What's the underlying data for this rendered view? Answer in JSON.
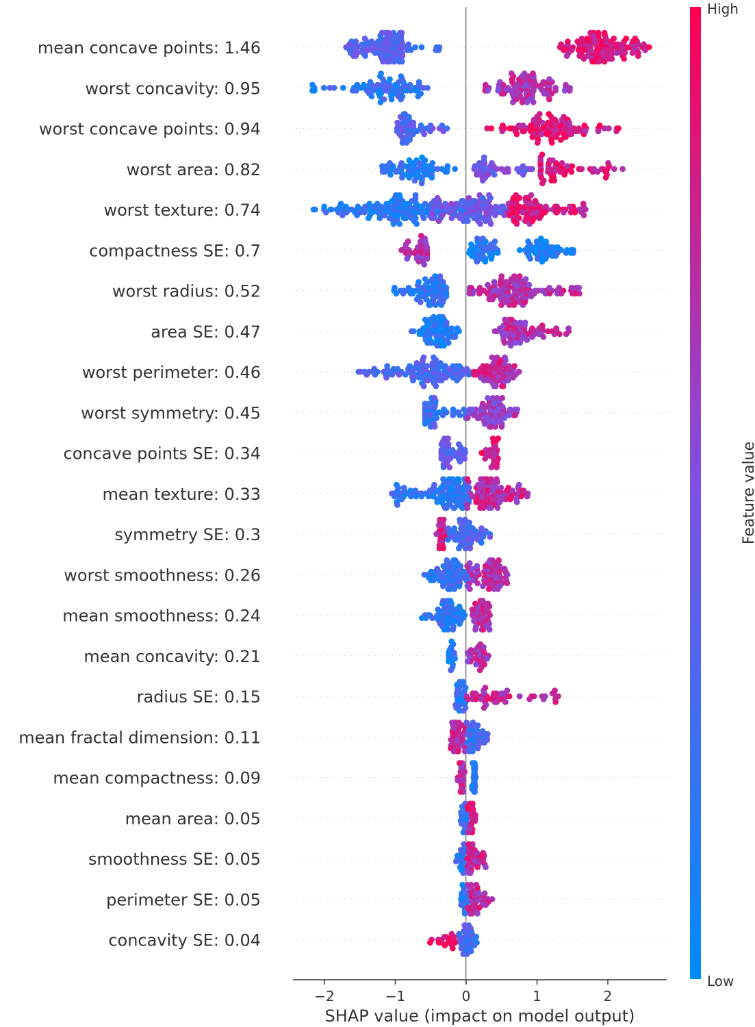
{
  "chart_data": {
    "type": "scatter",
    "subtype": "shap-beeswarm",
    "title": "",
    "xlabel": "SHAP value (impact on model output)",
    "ylabel": "",
    "xlim": [
      -2.45,
      2.8
    ],
    "xticks": [
      -2,
      -1,
      0,
      1,
      2
    ],
    "grid": false,
    "colorbar": {
      "label": "Feature value",
      "high_label": "High",
      "low_label": "Low",
      "low_color": "#008bfb",
      "high_color": "#ff0052"
    },
    "features": [
      {
        "label": "mean concave points: 1.46",
        "clusters": [
          {
            "lo": -1.7,
            "hi": -0.9,
            "peak": -1.05,
            "n": 130,
            "s": 0.35
          },
          {
            "lo": -0.9,
            "hi": -0.35,
            "peak": -0.8,
            "n": 14,
            "s": 0.2
          },
          {
            "lo": 1.25,
            "hi": 2.6,
            "peak": 1.85,
            "n": 140,
            "s": 0.85
          }
        ]
      },
      {
        "label": "worst concavity: 0.95",
        "clusters": [
          {
            "lo": -2.2,
            "hi": -0.5,
            "peak": -1.05,
            "n": 90,
            "s": 0.2
          },
          {
            "lo": 0.22,
            "hi": 1.5,
            "peak": 0.8,
            "n": 110,
            "s": 0.7
          }
        ]
      },
      {
        "label": "worst concave points: 0.94",
        "clusters": [
          {
            "lo": -0.98,
            "hi": -0.25,
            "peak": -0.85,
            "n": 60,
            "s": 0.35
          },
          {
            "lo": 0.28,
            "hi": 2.15,
            "peak": 1.2,
            "n": 110,
            "s": 0.85
          }
        ]
      },
      {
        "label": "worst area: 0.82",
        "clusters": [
          {
            "lo": -1.2,
            "hi": -0.05,
            "peak": -0.65,
            "n": 75,
            "s": 0.15
          },
          {
            "lo": 0.0,
            "hi": 0.95,
            "peak": 0.3,
            "n": 45,
            "s": 0.45
          },
          {
            "lo": 1.05,
            "hi": 2.25,
            "peak": 1.2,
            "n": 60,
            "s": 0.85
          }
        ]
      },
      {
        "label": "worst texture: 0.74",
        "clusters": [
          {
            "lo": -2.2,
            "hi": 0.0,
            "peak": -0.9,
            "n": 150,
            "s": 0.15
          },
          {
            "lo": -0.5,
            "hi": 0.6,
            "peak": 0.2,
            "n": 110,
            "s": 0.45
          },
          {
            "lo": 0.6,
            "hi": 1.75,
            "peak": 0.8,
            "n": 90,
            "s": 0.85
          }
        ]
      },
      {
        "label": "compactness SE: 0.7",
        "clusters": [
          {
            "lo": -0.92,
            "hi": -0.55,
            "peak": -0.6,
            "n": 45,
            "s": 0.7
          },
          {
            "lo": 0.02,
            "hi": 0.5,
            "peak": 0.2,
            "n": 45,
            "s": 0.15
          },
          {
            "lo": 0.75,
            "hi": 1.55,
            "peak": 1.1,
            "n": 55,
            "s": 0.12
          }
        ]
      },
      {
        "label": "worst radius: 0.52",
        "clusters": [
          {
            "lo": -1.05,
            "hi": -0.28,
            "peak": -0.4,
            "n": 90,
            "s": 0.2
          },
          {
            "lo": 0.0,
            "hi": 1.62,
            "peak": 0.65,
            "n": 130,
            "s": 0.7
          }
        ]
      },
      {
        "label": "area SE: 0.47",
        "clusters": [
          {
            "lo": -0.8,
            "hi": -0.1,
            "peak": -0.38,
            "n": 90,
            "s": 0.15
          },
          {
            "lo": 0.4,
            "hi": 1.45,
            "peak": 0.65,
            "n": 80,
            "s": 0.7
          }
        ]
      },
      {
        "label": "worst perimeter: 0.46",
        "clusters": [
          {
            "lo": -1.55,
            "hi": 0.05,
            "peak": -0.45,
            "n": 120,
            "s": 0.3
          },
          {
            "lo": 0.1,
            "hi": 0.82,
            "peak": 0.45,
            "n": 90,
            "s": 0.75
          }
        ]
      },
      {
        "label": "worst symmetry: 0.45",
        "clusters": [
          {
            "lo": -0.58,
            "hi": 0.0,
            "peak": -0.52,
            "n": 55,
            "s": 0.25
          },
          {
            "lo": 0.0,
            "hi": 0.75,
            "peak": 0.42,
            "n": 90,
            "s": 0.6
          }
        ]
      },
      {
        "label": "concave points SE: 0.34",
        "clusters": [
          {
            "lo": -0.35,
            "hi": 0.0,
            "peak": -0.3,
            "n": 55,
            "s": 0.4
          },
          {
            "lo": 0.22,
            "hi": 0.45,
            "peak": 0.42,
            "n": 45,
            "s": 0.85
          }
        ]
      },
      {
        "label": "mean texture: 0.33",
        "clusters": [
          {
            "lo": -1.05,
            "hi": 0.05,
            "peak": -0.2,
            "n": 150,
            "s": 0.2
          },
          {
            "lo": 0.0,
            "hi": 0.88,
            "peak": 0.35,
            "n": 120,
            "s": 0.75
          }
        ]
      },
      {
        "label": "symmetry SE: 0.3",
        "clusters": [
          {
            "lo": -0.42,
            "hi": -0.28,
            "peak": -0.35,
            "n": 45,
            "s": 0.8
          },
          {
            "lo": -0.28,
            "hi": 0.35,
            "peak": 0.0,
            "n": 70,
            "s": 0.3
          }
        ]
      },
      {
        "label": "worst smoothness: 0.26",
        "clusters": [
          {
            "lo": -0.6,
            "hi": 0.05,
            "peak": -0.2,
            "n": 90,
            "s": 0.25
          },
          {
            "lo": 0.0,
            "hi": 0.62,
            "peak": 0.38,
            "n": 90,
            "s": 0.7
          }
        ]
      },
      {
        "label": "mean smoothness: 0.24",
        "clusters": [
          {
            "lo": -0.65,
            "hi": 0.0,
            "peak": -0.25,
            "n": 70,
            "s": 0.2
          },
          {
            "lo": 0.08,
            "hi": 0.35,
            "peak": 0.22,
            "n": 75,
            "s": 0.75
          }
        ]
      },
      {
        "label": "mean concavity: 0.21",
        "clusters": [
          {
            "lo": -0.25,
            "hi": -0.15,
            "peak": -0.2,
            "n": 40,
            "s": 0.15
          },
          {
            "lo": 0.0,
            "hi": 0.38,
            "peak": 0.2,
            "n": 35,
            "s": 0.7
          }
        ]
      },
      {
        "label": "radius SE: 0.15",
        "clusters": [
          {
            "lo": -0.15,
            "hi": 0.0,
            "peak": -0.1,
            "n": 60,
            "s": 0.2
          },
          {
            "lo": 0.0,
            "hi": 1.35,
            "peak": 0.35,
            "n": 50,
            "s": 0.75
          }
        ]
      },
      {
        "label": "mean fractal dimension: 0.11",
        "clusters": [
          {
            "lo": -0.22,
            "hi": 0.0,
            "peak": -0.12,
            "n": 70,
            "s": 0.75
          },
          {
            "lo": 0.0,
            "hi": 0.35,
            "peak": 0.1,
            "n": 45,
            "s": 0.25
          }
        ]
      },
      {
        "label": "mean compactness: 0.09",
        "clusters": [
          {
            "lo": -0.12,
            "hi": 0.0,
            "peak": -0.05,
            "n": 60,
            "s": 0.75
          },
          {
            "lo": 0.08,
            "hi": 0.15,
            "peak": 0.12,
            "n": 30,
            "s": 0.15
          }
        ]
      },
      {
        "label": "mean area: 0.05",
        "clusters": [
          {
            "lo": -0.08,
            "hi": 0.02,
            "peak": -0.02,
            "n": 60,
            "s": 0.2
          },
          {
            "lo": 0.02,
            "hi": 0.14,
            "peak": 0.08,
            "n": 45,
            "s": 0.85
          }
        ]
      },
      {
        "label": "smoothness SE: 0.05",
        "clusters": [
          {
            "lo": -0.15,
            "hi": 0.0,
            "peak": -0.05,
            "n": 30,
            "s": 0.2
          },
          {
            "lo": 0.0,
            "hi": 0.3,
            "peak": 0.05,
            "n": 55,
            "s": 0.75
          }
        ]
      },
      {
        "label": "perimeter SE: 0.05",
        "clusters": [
          {
            "lo": -0.08,
            "hi": 0.02,
            "peak": -0.03,
            "n": 60,
            "s": 0.15
          },
          {
            "lo": 0.02,
            "hi": 0.38,
            "peak": 0.08,
            "n": 45,
            "s": 0.75
          }
        ]
      },
      {
        "label": "concavity SE: 0.04",
        "clusters": [
          {
            "lo": -0.55,
            "hi": -0.1,
            "peak": -0.2,
            "n": 20,
            "s": 0.95
          },
          {
            "lo": -0.1,
            "hi": 0.15,
            "peak": 0.02,
            "n": 60,
            "s": 0.3
          }
        ]
      }
    ]
  }
}
